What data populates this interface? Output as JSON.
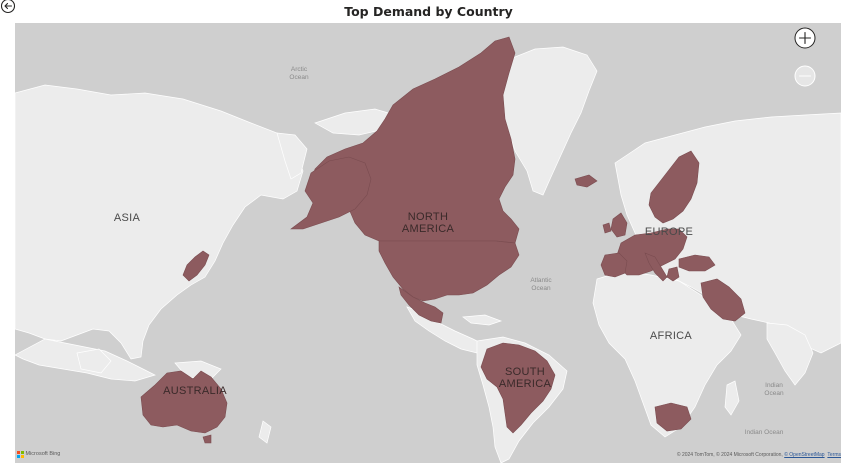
{
  "title": "Top Demand by Country",
  "back_button": {
    "icon": "back-arrow-icon"
  },
  "zoom": {
    "in_icon": "plus-icon",
    "out_icon": "minus-icon"
  },
  "continent_labels": {
    "asia": "ASIA",
    "north_america_1": "NORTH",
    "north_america_2": "AMERICA",
    "europe": "EUROPE",
    "africa": "AFRICA",
    "south_america_1": "SOUTH",
    "south_america_2": "AMERICA",
    "australia": "AUSTRALIA"
  },
  "ocean_labels": {
    "arctic_1": "Arctic",
    "arctic_2": "Ocean",
    "atlantic_1": "Atlantic",
    "atlantic_2": "Ocean",
    "indian_1": "Indian",
    "indian_2": "Ocean",
    "indian_3": "Indian Ocean"
  },
  "highlighted_regions": [
    "Canada",
    "United States",
    "Mexico",
    "Brazil",
    "Australia",
    "Japan",
    "Norway",
    "Sweden",
    "Finland",
    "United Kingdom",
    "Ireland",
    "France",
    "Spain",
    "Portugal",
    "Germany",
    "Poland",
    "Italy",
    "Greece",
    "Turkey",
    "Saudi Arabia",
    "Oman",
    "South Africa",
    "Iceland"
  ],
  "colors": {
    "ocean": "#cfcfcf",
    "land": "#ececec",
    "border": "#ffffff",
    "highlight": "#8d5b5f",
    "highlight_border": "#7a4c50",
    "title": "#252423"
  },
  "bing": {
    "label": "Microsoft Bing"
  },
  "attribution": {
    "text": "© 2024 TomTom, © 2024 Microsoft Corporation, ",
    "osm_link": "© OpenStreetMap",
    "terms_link": "Terms"
  }
}
